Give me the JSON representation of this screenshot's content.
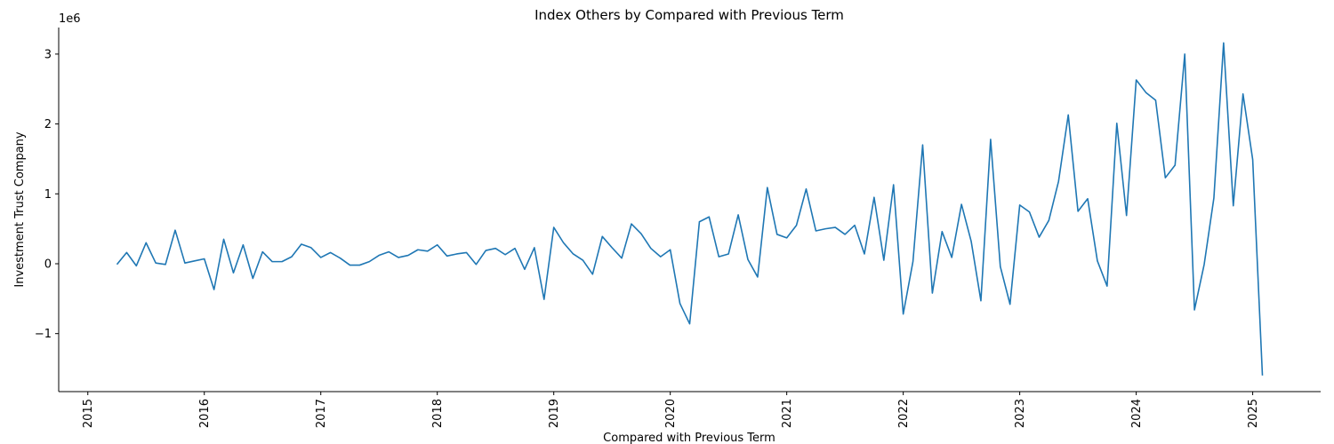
{
  "chart_data": {
    "type": "line",
    "title": "Index Others by Compared with Previous Term",
    "x_label": "Compared with Previous Term",
    "y_label": "Investment Trust Company",
    "y_offset_text": "1e6",
    "color": "#1f77b4",
    "x": [
      "2015-04",
      "2015-05",
      "2015-06",
      "2015-07",
      "2015-08",
      "2015-09",
      "2015-10",
      "2015-11",
      "2015-12",
      "2016-01",
      "2016-02",
      "2016-03",
      "2016-04",
      "2016-05",
      "2016-06",
      "2016-07",
      "2016-08",
      "2016-09",
      "2016-10",
      "2016-11",
      "2016-12",
      "2017-01",
      "2017-02",
      "2017-03",
      "2017-04",
      "2017-05",
      "2017-06",
      "2017-07",
      "2017-08",
      "2017-09",
      "2017-10",
      "2017-11",
      "2017-12",
      "2018-01",
      "2018-02",
      "2018-03",
      "2018-04",
      "2018-05",
      "2018-06",
      "2018-07",
      "2018-08",
      "2018-09",
      "2018-10",
      "2018-11",
      "2018-12",
      "2019-01",
      "2019-02",
      "2019-03",
      "2019-04",
      "2019-05",
      "2019-06",
      "2019-07",
      "2019-08",
      "2019-09",
      "2019-10",
      "2019-11",
      "2019-12",
      "2020-01",
      "2020-02",
      "2020-03",
      "2020-04",
      "2020-05",
      "2020-06",
      "2020-07",
      "2020-08",
      "2020-09",
      "2020-10",
      "2020-11",
      "2020-12",
      "2021-01",
      "2021-02",
      "2021-03",
      "2021-04",
      "2021-05",
      "2021-06",
      "2021-07",
      "2021-08",
      "2021-09",
      "2021-10",
      "2021-11",
      "2021-12",
      "2022-01",
      "2022-02",
      "2022-03",
      "2022-04",
      "2022-05",
      "2022-06",
      "2022-07",
      "2022-08",
      "2022-09",
      "2022-10",
      "2022-11",
      "2022-12",
      "2023-01",
      "2023-02",
      "2023-03",
      "2023-04",
      "2023-05",
      "2023-06",
      "2023-07",
      "2023-08",
      "2023-09",
      "2023-10",
      "2023-11",
      "2023-12",
      "2024-01",
      "2024-02",
      "2024-03",
      "2024-04",
      "2024-05",
      "2024-06",
      "2024-07",
      "2024-08",
      "2024-09",
      "2024-10",
      "2024-11",
      "2024-12",
      "2025-01",
      "2025-02"
    ],
    "values": [
      -0.01,
      0.16,
      -0.03,
      0.3,
      0.01,
      -0.01,
      0.48,
      0.01,
      0.04,
      0.07,
      -0.37,
      0.35,
      -0.13,
      0.27,
      -0.21,
      0.17,
      0.03,
      0.03,
      0.1,
      0.28,
      0.23,
      0.09,
      0.16,
      0.08,
      -0.02,
      -0.02,
      0.03,
      0.12,
      0.17,
      0.09,
      0.12,
      0.2,
      0.18,
      0.27,
      0.11,
      0.14,
      0.16,
      -0.01,
      0.19,
      0.22,
      0.13,
      0.22,
      -0.08,
      0.23,
      -0.51,
      0.52,
      0.3,
      0.14,
      0.05,
      -0.15,
      0.39,
      0.23,
      0.08,
      0.57,
      0.43,
      0.22,
      0.1,
      0.2,
      -0.57,
      -0.86,
      0.6,
      0.67,
      0.1,
      0.14,
      0.7,
      0.06,
      -0.19,
      1.09,
      0.42,
      0.37,
      0.55,
      1.07,
      0.47,
      0.5,
      0.52,
      0.42,
      0.55,
      0.14,
      0.95,
      0.05,
      1.13,
      -0.72,
      0.03,
      1.7,
      -0.42,
      0.46,
      0.09,
      0.85,
      0.32,
      -0.53,
      1.78,
      -0.04,
      -0.58,
      0.84,
      0.74,
      0.38,
      0.62,
      1.18,
      2.13,
      0.75,
      0.93,
      0.04,
      -0.32,
      2.01,
      0.69,
      2.63,
      2.45,
      2.34,
      1.23,
      1.41,
      3.0,
      -0.66,
      -0.01,
      0.94,
      3.16,
      0.83,
      2.43,
      1.49,
      -1.6
    ],
    "xlim": [
      "2014-10",
      "2025-08"
    ],
    "xticks": [
      {
        "value": "2015-01",
        "label": "2015"
      },
      {
        "value": "2016-01",
        "label": "2016"
      },
      {
        "value": "2017-01",
        "label": "2017"
      },
      {
        "value": "2018-01",
        "label": "2018"
      },
      {
        "value": "2019-01",
        "label": "2019"
      },
      {
        "value": "2020-01",
        "label": "2020"
      },
      {
        "value": "2021-01",
        "label": "2021"
      },
      {
        "value": "2022-01",
        "label": "2022"
      },
      {
        "value": "2023-01",
        "label": "2023"
      },
      {
        "value": "2024-01",
        "label": "2024"
      },
      {
        "value": "2025-01",
        "label": "2025"
      }
    ],
    "ylim": [
      -1.83,
      3.38
    ],
    "yticks": [
      {
        "value": -1,
        "label": "−1"
      },
      0,
      1,
      2,
      3
    ]
  }
}
